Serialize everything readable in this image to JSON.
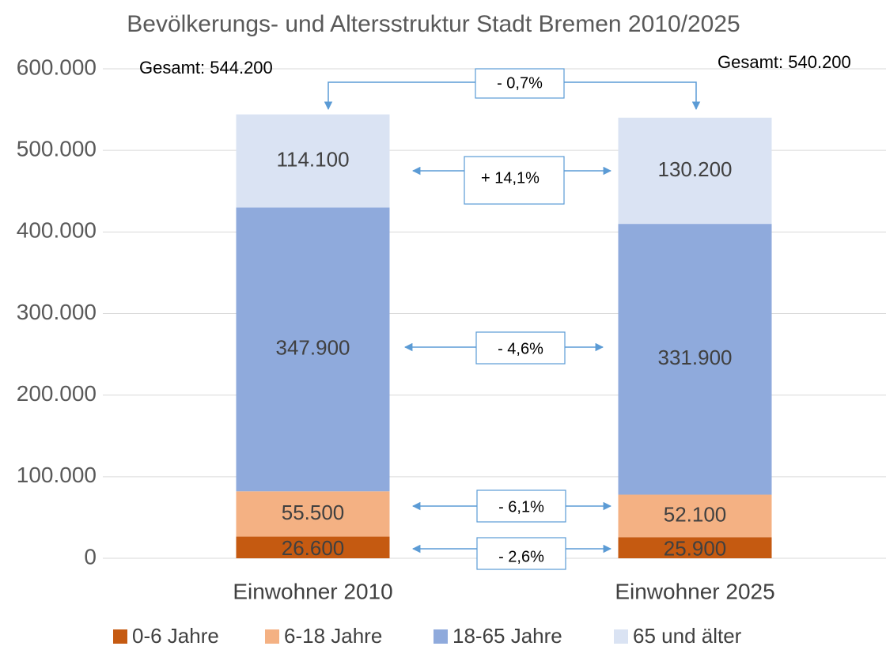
{
  "chart_data": {
    "type": "stacked_bar",
    "title": "Bevölkerungs- und Altersstruktur Stadt Bremen 2010/2025",
    "categories": [
      "Einwohner 2010",
      "Einwohner 2025"
    ],
    "series": [
      {
        "name": "0-6 Jahre",
        "color": "#c55a11",
        "values": [
          26600,
          25900
        ],
        "value_labels": [
          "26.600",
          "25.900"
        ]
      },
      {
        "name": "6-18 Jahre",
        "color": "#f4b183",
        "values": [
          55500,
          52100
        ],
        "value_labels": [
          "55.500",
          "52.100"
        ]
      },
      {
        "name": "18-65 Jahre",
        "color": "#8faadc",
        "values": [
          347900,
          331900
        ],
        "value_labels": [
          "347.900",
          "331.900"
        ]
      },
      {
        "name": "65 und älter",
        "color": "#dae3f3",
        "values": [
          114100,
          130200
        ],
        "value_labels": [
          "114.100",
          "130.200"
        ]
      }
    ],
    "ylim": [
      0,
      600000
    ],
    "yticks": [
      0,
      {
        "value": 100000,
        "label": "100.000"
      },
      {
        "value": 200000,
        "label": "200.000"
      },
      {
        "value": 300000,
        "label": "300.000"
      },
      {
        "value": 400000,
        "label": "400.000"
      },
      {
        "value": 500000,
        "label": "500.000"
      },
      {
        "value": 600000,
        "label": "600.000"
      }
    ],
    "grid": true,
    "legend": "bottom",
    "annotations": [
      "Gesamt: 544.200",
      "Gesamt: 540.200",
      "- 0,7%",
      "+ 14,1%",
      "- 4,6%",
      "- 6,1%",
      "- 2,6%"
    ]
  }
}
